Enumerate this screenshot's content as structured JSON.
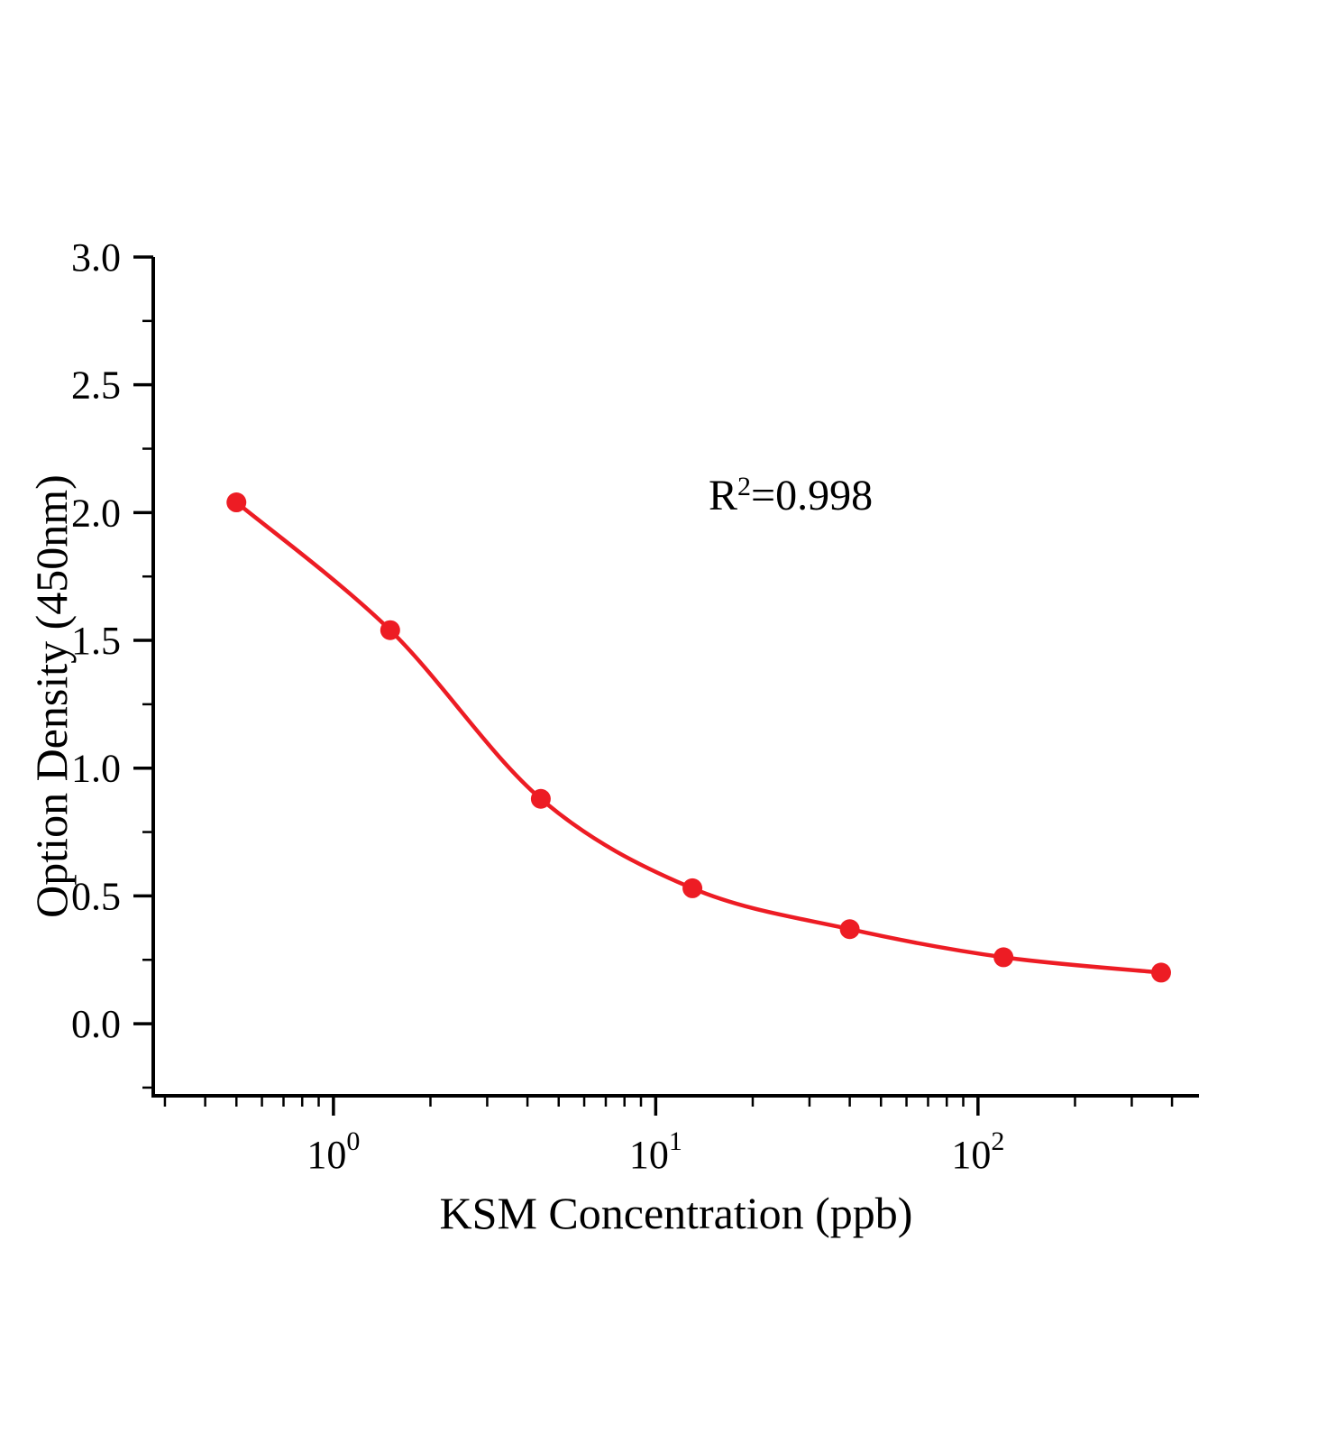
{
  "page": {
    "background": "#ffffff"
  },
  "chart_data": {
    "type": "scatter",
    "title": "",
    "x_scale": "log",
    "grid": false,
    "legend": "none",
    "xlabel": "KSM Concentration（ppb）",
    "ylabel": "Option Density（450nm）",
    "annotation": {
      "base": "R",
      "exponent": "2",
      "suffix": "=0.998",
      "display": "R²=0.998"
    },
    "xlim": [
      0.276,
      485
    ],
    "ylim": [
      -0.282,
      3.0
    ],
    "x_ticks": [
      {
        "value": 1,
        "base": "10",
        "exponent": "0"
      },
      {
        "value": 10,
        "base": "10",
        "exponent": "1"
      },
      {
        "value": 100,
        "base": "10",
        "exponent": "2"
      }
    ],
    "x_minor_ticks": [
      0.3,
      0.4,
      0.5,
      0.6,
      0.7,
      0.8,
      0.9,
      2,
      3,
      4,
      5,
      6,
      7,
      8,
      9,
      20,
      30,
      40,
      50,
      60,
      70,
      80,
      90,
      200,
      300,
      400
    ],
    "y_ticks": [
      {
        "value": 0.0,
        "label": "0.0"
      },
      {
        "value": 0.5,
        "label": "0.5"
      },
      {
        "value": 1.0,
        "label": "1.0"
      },
      {
        "value": 1.5,
        "label": "1.5"
      },
      {
        "value": 2.0,
        "label": "2.0"
      },
      {
        "value": 2.5,
        "label": "2.5"
      },
      {
        "value": 3.0,
        "label": "3.0"
      }
    ],
    "y_minor_ticks": [
      -0.25,
      0.25,
      0.75,
      1.25,
      1.75,
      2.25,
      2.75
    ],
    "points": [
      {
        "x": 0.5,
        "y": 2.04
      },
      {
        "x": 1.5,
        "y": 1.54
      },
      {
        "x": 4.4,
        "y": 0.88
      },
      {
        "x": 13,
        "y": 0.53
      },
      {
        "x": 40,
        "y": 0.37
      },
      {
        "x": 120,
        "y": 0.26
      },
      {
        "x": 370,
        "y": 0.2
      }
    ],
    "colors": {
      "series": "#ed1c24",
      "axis": "#000000",
      "text": "#000000"
    }
  }
}
